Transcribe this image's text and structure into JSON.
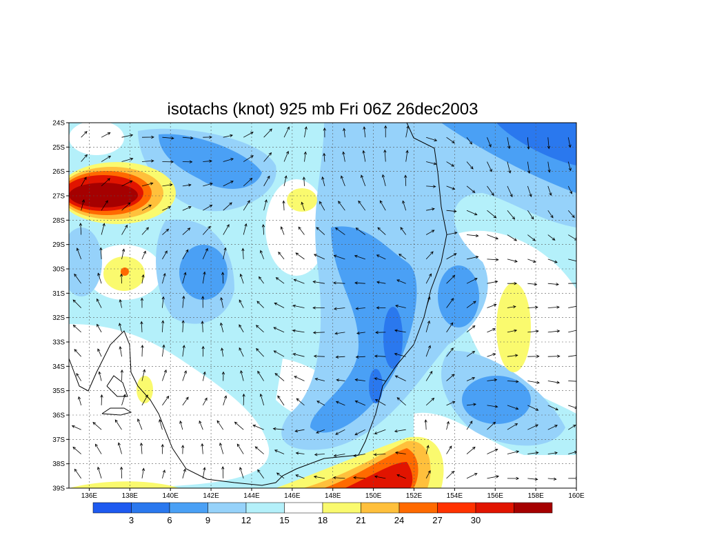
{
  "map": {
    "title": "isotachs (knot) 925 mb Fri 06Z 26dec2003",
    "lon_range": [
      135,
      160
    ],
    "lat_range": [
      24,
      39
    ],
    "lon_ticks": [
      {
        "value": 136,
        "label": "136E"
      },
      {
        "value": 138,
        "label": "138E"
      },
      {
        "value": 140,
        "label": "140E"
      },
      {
        "value": 142,
        "label": "142E"
      },
      {
        "value": 144,
        "label": "144E"
      },
      {
        "value": 146,
        "label": "146E"
      },
      {
        "value": 148,
        "label": "148E"
      },
      {
        "value": 150,
        "label": "150E"
      },
      {
        "value": 152,
        "label": "152E"
      },
      {
        "value": 154,
        "label": "154E"
      },
      {
        "value": 156,
        "label": "156E"
      },
      {
        "value": 158,
        "label": "158E"
      },
      {
        "value": 160,
        "label": "160E"
      }
    ],
    "lat_ticks": [
      {
        "value": 24,
        "label": "24S"
      },
      {
        "value": 25,
        "label": "25S"
      },
      {
        "value": 26,
        "label": "26S"
      },
      {
        "value": 27,
        "label": "27S"
      },
      {
        "value": 28,
        "label": "28S"
      },
      {
        "value": 29,
        "label": "29S"
      },
      {
        "value": 30,
        "label": "30S"
      },
      {
        "value": 31,
        "label": "31S"
      },
      {
        "value": 32,
        "label": "32S"
      },
      {
        "value": 33,
        "label": "33S"
      },
      {
        "value": 34,
        "label": "34S"
      },
      {
        "value": 35,
        "label": "35S"
      },
      {
        "value": 36,
        "label": "36S"
      },
      {
        "value": 37,
        "label": "37S"
      },
      {
        "value": 38,
        "label": "38S"
      },
      {
        "value": 39,
        "label": "39S"
      }
    ],
    "colorbar": {
      "levels": [
        3,
        6,
        9,
        12,
        15,
        18,
        21,
        24,
        27,
        30
      ],
      "colors": [
        "#1e5af0",
        "#2a78ee",
        "#4aa0f5",
        "#96d2fa",
        "#b4f0fa",
        "#ffffff",
        "#fafa6e",
        "#ffc03c",
        "#ff6a00",
        "#ff3200",
        "#e11400",
        "#a50000"
      ]
    }
  }
}
